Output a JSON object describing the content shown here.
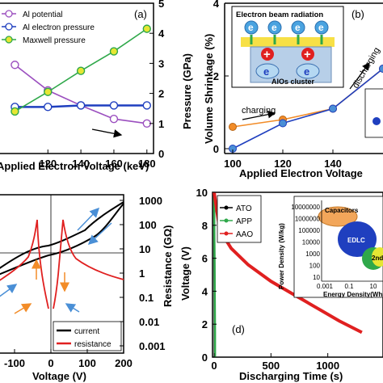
{
  "chart_data": [
    {
      "type": "line",
      "panel_label": "(a)",
      "xlabel": "Applied Electron Voltage (keV)",
      "ylabel_right": "Pressure (GPa)",
      "x_ticks": [
        "120",
        "140",
        "160",
        "180"
      ],
      "y_right_ticks": [
        "0",
        "1",
        "2",
        "3",
        "4",
        "5"
      ],
      "ylim_right": [
        0,
        5
      ],
      "x": [
        100,
        120,
        140,
        160,
        180
      ],
      "legend_position": "top-left",
      "series": [
        {
          "name": "Al potential",
          "color": "#9b4fbf",
          "values": [
            2.95,
            2.1,
            1.6,
            1.15,
            1.0
          ]
        },
        {
          "name": "Al electron pressure",
          "color": "#1f3fbf",
          "values": [
            1.55,
            1.55,
            1.6,
            1.6,
            1.6
          ]
        },
        {
          "name": "Maxwell pressure",
          "color": "#2fa84a",
          "values": [
            1.4,
            2.05,
            2.75,
            3.4,
            4.15
          ]
        }
      ]
    },
    {
      "type": "line",
      "panel_label": "(b)",
      "xlabel": "Applied Electron Voltage",
      "ylabel": "Volume Shrinkage (%)",
      "x_ticks": [
        "100",
        "120",
        "140"
      ],
      "y_ticks": [
        "0",
        "2",
        "4"
      ],
      "x": [
        100,
        120,
        140,
        160
      ],
      "series": [
        {
          "color": "#f28c28",
          "values": [
            0.6,
            0.8,
            1.1,
            2.2
          ]
        },
        {
          "color": "#1f3fbf",
          "values": [
            0.0,
            0.7,
            1.1,
            2.2
          ]
        }
      ],
      "inset_title": "Electron beam radiation",
      "inset_caption": "AlOs cluster",
      "inset_symbols": [
        "e",
        "e",
        "e",
        "e"
      ],
      "inset_plus": "+",
      "annotations": [
        "charging",
        "discharging"
      ]
    },
    {
      "type": "line",
      "xlabel": "Voltage (V)",
      "ylabel_right": "Resistance (GΩ)",
      "x_ticks": [
        "-100",
        "0",
        "100",
        "200"
      ],
      "y_right_ticks": [
        "1000",
        "100",
        "10",
        "1",
        "0.1",
        "0.01",
        "0.001"
      ],
      "y_right_scale": "log",
      "legend_position": "bottom-right",
      "series": [
        {
          "name": "current",
          "color": "#000000"
        },
        {
          "name": "resistance",
          "color": "#e02020"
        }
      ]
    },
    {
      "type": "line",
      "panel_label": "(d)",
      "xlabel": "Discharging Time (s)",
      "ylabel": "Voltage (V)",
      "x_ticks": [
        "0",
        "500",
        "1000"
      ],
      "y_ticks": [
        "0",
        "2",
        "4",
        "6",
        "8",
        "10"
      ],
      "ylim": [
        0,
        10
      ],
      "legend_position": "top-left",
      "series": [
        {
          "name": "ATO",
          "color": "#000000",
          "x": [
            0,
            5,
            5
          ],
          "values": [
            10,
            1.5,
            0
          ]
        },
        {
          "name": "APP",
          "color": "#2fa84a",
          "x": [
            0,
            8,
            8
          ],
          "values": [
            10,
            1.5,
            0
          ]
        },
        {
          "name": "AAO",
          "color": "#e02020",
          "x": [
            0,
            50,
            150,
            300,
            500,
            700,
            900,
            1100,
            1300
          ],
          "values": [
            10,
            7.7,
            6.6,
            5.6,
            4.6,
            3.8,
            3.0,
            2.2,
            1.5
          ]
        }
      ],
      "inset": {
        "xlabel": "Energy Density(Wh/kg)",
        "ylabel": "Power Density (W/kg)",
        "x_ticks": [
          "0.001",
          "0.1",
          "10"
        ],
        "y_ticks": [
          "10000000",
          "1000000",
          "100000",
          "10000",
          "1000",
          "100",
          "10"
        ],
        "regions": [
          "Capacitors",
          "EDLC",
          "2nd"
        ]
      }
    }
  ]
}
